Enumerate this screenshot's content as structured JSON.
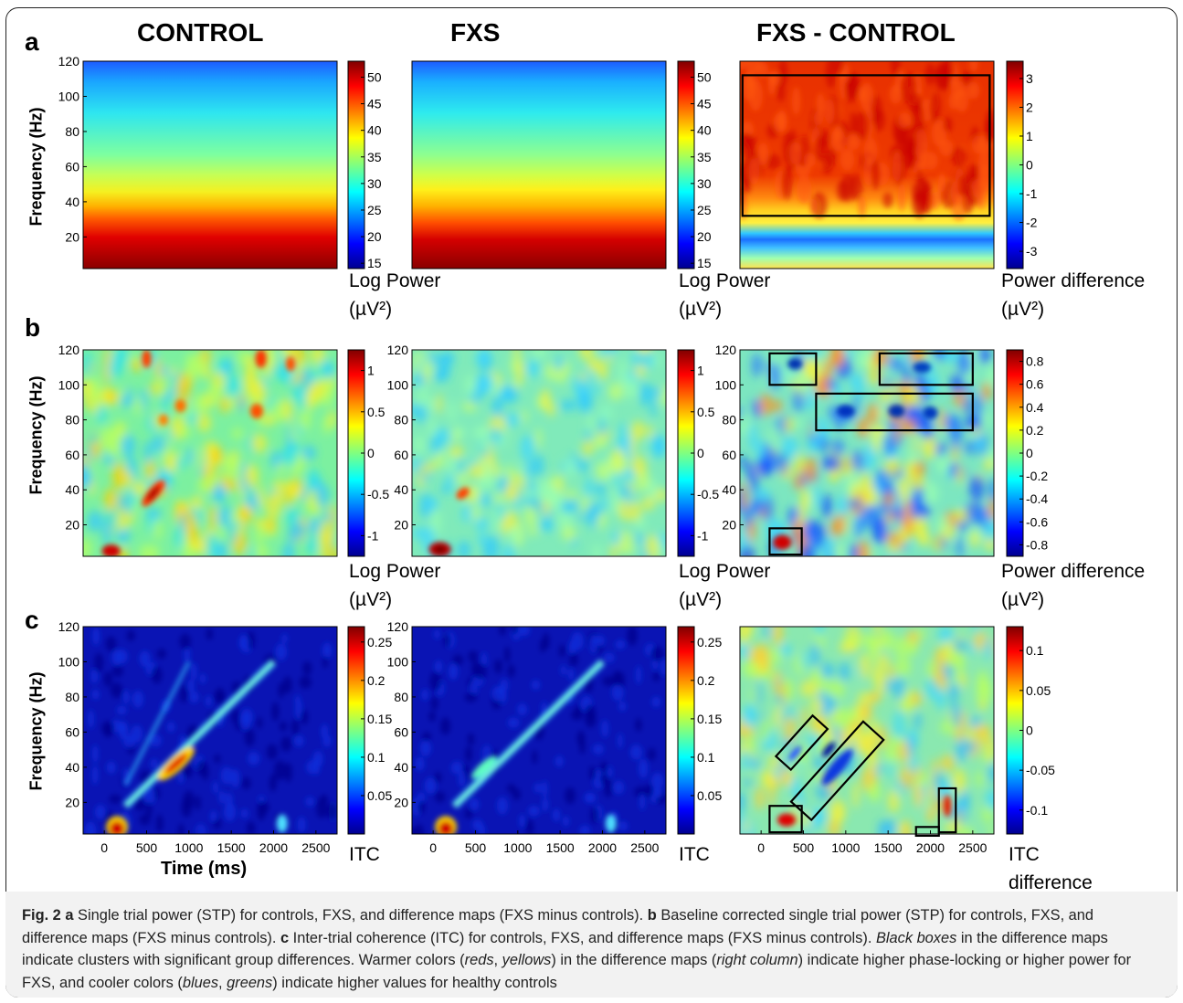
{
  "figure": {
    "columns": [
      "CONTROL",
      "FXS",
      "FXS - CONTROL"
    ],
    "panel_letters": [
      "a",
      "b",
      "c"
    ],
    "ylabel": "Frequency (Hz)",
    "xlabel": "Time (ms)",
    "caption": {
      "label": "Fig. 2",
      "a_bold": "a",
      "a_text": " Single trial power (STP) for controls, FXS, and difference maps (FXS minus controls). ",
      "b_bold": "b",
      "b_text": " Baseline corrected single trial power (STP) for controls, FXS, and difference maps (FXS minus controls). ",
      "c_bold": "c",
      "c_text": " Inter-trial coherence (ITC) for controls, FXS, and difference maps (FXS minus controls). ",
      "black_boxes": "Black boxes",
      "t1": " in the difference maps indicate clusters with significant group differences. Warmer colors (",
      "reds": "reds",
      "comma1": ", ",
      "yellows": "yellows",
      "t2": ") in the difference maps (",
      "right_column": "right column",
      "t3": ") indicate higher phase-locking or higher power for FXS, and cooler colors (",
      "blues": "blues",
      "comma2": ", ",
      "greens": "greens",
      "t4": ") indicate higher values for healthy controls"
    }
  },
  "chart_data": [
    {
      "type": "heatmap",
      "panel": "a",
      "column": "CONTROL",
      "ylabel": "Frequency (Hz)",
      "ylim": [
        2,
        120
      ],
      "yticks": [
        20,
        40,
        60,
        80,
        100,
        120
      ],
      "colorbar": {
        "label": [
          "Log Power",
          "(µV²)"
        ],
        "ticks": [
          15,
          20,
          25,
          30,
          35,
          40,
          45,
          50
        ],
        "range": [
          14,
          53
        ]
      },
      "description_values": {
        "low_freq_power": 52,
        "high_freq_power": 16
      }
    },
    {
      "type": "heatmap",
      "panel": "a",
      "column": "FXS",
      "ylim": [
        2,
        120
      ],
      "colorbar": {
        "label": [
          "Log Power",
          "(µV²)"
        ],
        "ticks": [
          15,
          20,
          25,
          30,
          35,
          40,
          45,
          50
        ],
        "range": [
          14,
          53
        ]
      }
    },
    {
      "type": "heatmap",
      "panel": "a",
      "column": "FXS - CONTROL",
      "ylim": [
        2,
        120
      ],
      "colorbar": {
        "label": [
          "Power difference",
          "(µV²)"
        ],
        "ticks": [
          3,
          2,
          1,
          0,
          -1,
          -2,
          -3
        ],
        "range": [
          -3.6,
          3.6
        ]
      }
    },
    {
      "type": "heatmap",
      "panel": "b",
      "column": "CONTROL",
      "ylabel": "Frequency (Hz)",
      "ylim": [
        2,
        120
      ],
      "yticks": [
        20,
        40,
        60,
        80,
        100,
        120
      ],
      "colorbar": {
        "label": [
          "Log Power",
          "(µV²)"
        ],
        "ticks": [
          1,
          0.5,
          0,
          -0.5,
          -1
        ],
        "range": [
          -1.25,
          1.25
        ]
      }
    },
    {
      "type": "heatmap",
      "panel": "b",
      "column": "FXS",
      "ylim": [
        2,
        120
      ],
      "yticks": [
        20,
        40,
        60,
        80,
        100,
        120
      ],
      "colorbar": {
        "label": [
          "Log Power",
          "(µV²)"
        ],
        "ticks": [
          1,
          0.5,
          0,
          -0.5,
          -1
        ],
        "range": [
          -1.25,
          1.25
        ]
      }
    },
    {
      "type": "heatmap",
      "panel": "b",
      "column": "FXS - CONTROL",
      "ylim": [
        2,
        120
      ],
      "yticks": [
        20,
        40,
        60,
        80,
        100,
        120
      ],
      "colorbar": {
        "label": [
          "Power difference",
          "(µV²)"
        ],
        "ticks": [
          0.8,
          0.6,
          0.4,
          0.2,
          0,
          -0.2,
          -0.4,
          -0.6,
          -0.8
        ],
        "range": [
          -0.9,
          0.9
        ]
      }
    },
    {
      "type": "heatmap",
      "panel": "c",
      "column": "CONTROL",
      "xlabel": "Time (ms)",
      "ylabel": "Frequency (Hz)",
      "xlim": [
        -250,
        2750
      ],
      "ylim": [
        2,
        120
      ],
      "xticks": [
        0,
        500,
        1000,
        1500,
        2000,
        2500
      ],
      "yticks": [
        20,
        40,
        60,
        80,
        100,
        120
      ],
      "colorbar": {
        "label": [
          "ITC"
        ],
        "ticks": [
          0.25,
          0.2,
          0.15,
          0.1,
          0.05
        ],
        "range": [
          0,
          0.27
        ]
      }
    },
    {
      "type": "heatmap",
      "panel": "c",
      "column": "FXS",
      "xlim": [
        -250,
        2750
      ],
      "ylim": [
        2,
        120
      ],
      "xticks": [
        0,
        500,
        1000,
        1500,
        2000,
        2500
      ],
      "yticks": [
        20,
        40,
        60,
        80,
        100,
        120
      ],
      "colorbar": {
        "label": [
          "ITC"
        ],
        "ticks": [
          0.25,
          0.2,
          0.15,
          0.1,
          0.05
        ],
        "range": [
          0,
          0.27
        ]
      }
    },
    {
      "type": "heatmap",
      "panel": "c",
      "column": "FXS - CONTROL",
      "xlim": [
        -250,
        2750
      ],
      "ylim": [
        2,
        120
      ],
      "xticks": [
        0,
        500,
        1000,
        1500,
        2000,
        2500
      ],
      "colorbar": {
        "label": [
          "ITC",
          "difference"
        ],
        "ticks": [
          0.1,
          0.05,
          0,
          -0.05,
          -0.1
        ],
        "range": [
          -0.13,
          0.13
        ]
      }
    }
  ]
}
